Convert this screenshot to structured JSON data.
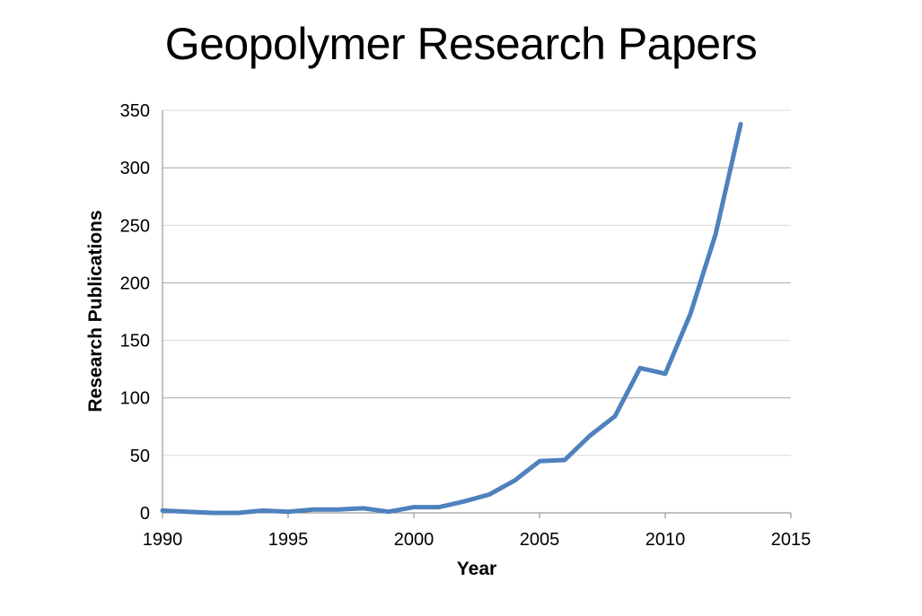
{
  "chart_data": {
    "type": "line",
    "title": "Geopolymer Research Papers",
    "xlabel": "Year",
    "ylabel": "Research Publications",
    "xlim": [
      1990,
      2015
    ],
    "ylim": [
      0,
      350
    ],
    "x_ticks": [
      "1990",
      "1995",
      "2000",
      "2005",
      "2010",
      "2015"
    ],
    "y_ticks": [
      "0",
      "50",
      "100",
      "150",
      "200",
      "250",
      "300",
      "350"
    ],
    "grid": true,
    "legend": "none",
    "series": [
      {
        "color": "#4F81BD",
        "x": [
          1990,
          1991,
          1992,
          1993,
          1994,
          1995,
          1996,
          1997,
          1998,
          1999,
          2000,
          2001,
          2002,
          2003,
          2004,
          2005,
          2006,
          2007,
          2008,
          2009,
          2010,
          2011,
          2012,
          2013
        ],
        "y": [
          2,
          1,
          0,
          0,
          2,
          1,
          3,
          3,
          4,
          1,
          5,
          5,
          10,
          16,
          28,
          45,
          46,
          67,
          84,
          126,
          121,
          173,
          242,
          338
        ]
      }
    ]
  }
}
